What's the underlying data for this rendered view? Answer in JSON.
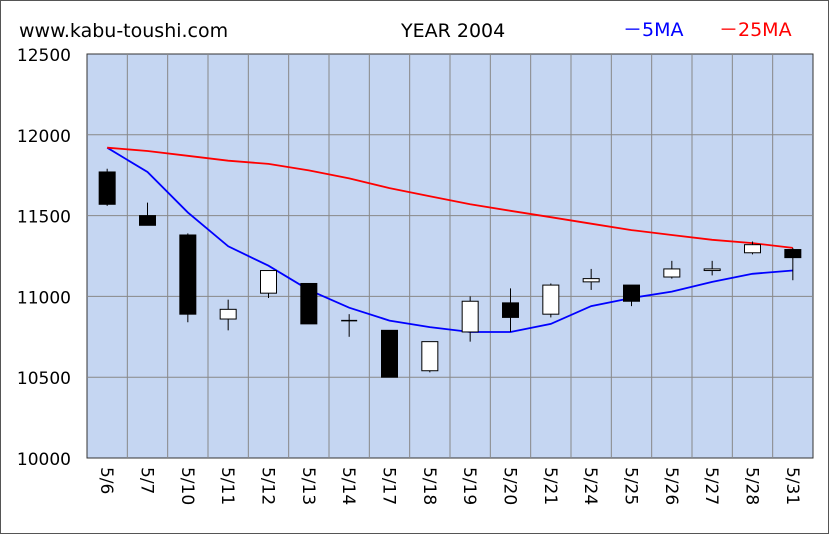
{
  "site": "www.kabu-toushi.com",
  "chart_data": {
    "type": "candlestick",
    "title": "YEAR 2004",
    "categories": [
      "5/6",
      "5/7",
      "5/10",
      "5/11",
      "5/12",
      "5/13",
      "5/14",
      "5/17",
      "5/18",
      "5/19",
      "5/20",
      "5/21",
      "5/24",
      "5/25",
      "5/26",
      "5/27",
      "5/28",
      "5/31"
    ],
    "ylim": [
      10000,
      12500
    ],
    "yticks": [
      10000,
      10500,
      11000,
      11500,
      12000,
      12500
    ],
    "candles": [
      {
        "open": 11770,
        "high": 11790,
        "low": 11560,
        "close": 11570
      },
      {
        "open": 11500,
        "high": 11580,
        "low": 11440,
        "close": 11440
      },
      {
        "open": 11380,
        "high": 11390,
        "low": 10840,
        "close": 10890
      },
      {
        "open": 10860,
        "high": 10980,
        "low": 10790,
        "close": 10920
      },
      {
        "open": 11020,
        "high": 11160,
        "low": 10990,
        "close": 11160
      },
      {
        "open": 11080,
        "high": 11080,
        "low": 10830,
        "close": 10830
      },
      {
        "open": 10850,
        "high": 10890,
        "low": 10750,
        "close": 10850
      },
      {
        "open": 10790,
        "high": 10790,
        "low": 10500,
        "close": 10500
      },
      {
        "open": 10540,
        "high": 10720,
        "low": 10530,
        "close": 10720
      },
      {
        "open": 10780,
        "high": 11000,
        "low": 10720,
        "close": 10970
      },
      {
        "open": 10960,
        "high": 11050,
        "low": 10780,
        "close": 10870
      },
      {
        "open": 10890,
        "high": 11080,
        "low": 10870,
        "close": 11070
      },
      {
        "open": 11090,
        "high": 11170,
        "low": 11040,
        "close": 11110
      },
      {
        "open": 11070,
        "high": 11070,
        "low": 10940,
        "close": 10970
      },
      {
        "open": 11120,
        "high": 11220,
        "low": 11110,
        "close": 11170
      },
      {
        "open": 11160,
        "high": 11220,
        "low": 11130,
        "close": 11170
      },
      {
        "open": 11270,
        "high": 11340,
        "low": 11260,
        "close": 11320
      },
      {
        "open": 11290,
        "high": 11300,
        "low": 11100,
        "close": 11240
      }
    ],
    "series": [
      {
        "name": "5MA",
        "color": "#0000ff",
        "values": [
          11920,
          11770,
          11520,
          11310,
          11190,
          11040,
          10930,
          10850,
          10810,
          10780,
          10780,
          10830,
          10940,
          10990,
          11030,
          11090,
          11140,
          11160
        ]
      },
      {
        "name": "25MA",
        "color": "#ff0000",
        "values": [
          11920,
          11900,
          11870,
          11840,
          11820,
          11780,
          11730,
          11670,
          11620,
          11570,
          11530,
          11490,
          11450,
          11410,
          11380,
          11350,
          11330,
          11300
        ]
      }
    ],
    "legend": [
      {
        "label": "－5MA",
        "color": "#0000ff"
      },
      {
        "label": "－25MA",
        "color": "#ff0000"
      }
    ],
    "colors": {
      "plot_bg": "#c5d6f2",
      "grid": "#888888",
      "up_fill": "#ffffff",
      "down_fill": "#000000"
    }
  }
}
